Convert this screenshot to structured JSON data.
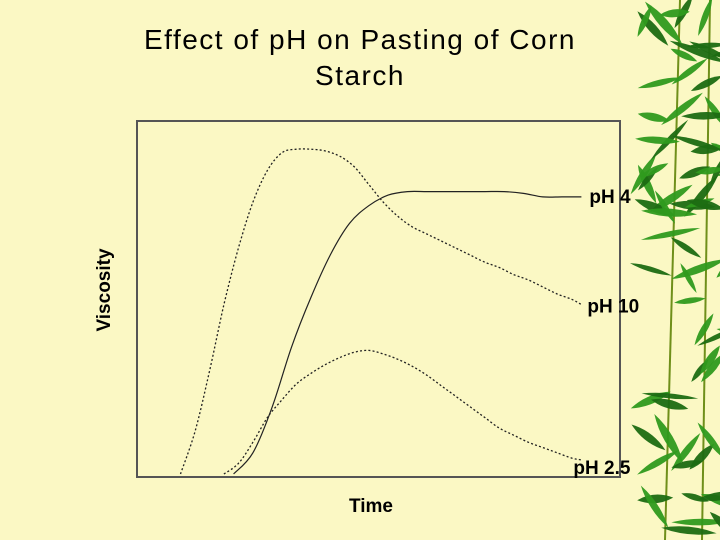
{
  "slide": {
    "title_line1": "Effect of pH on Pasting of Corn",
    "title_line2": "Starch"
  },
  "chart_data": {
    "type": "line",
    "title": "Effect of pH on Pasting of Corn Starch",
    "xlabel": "Time",
    "ylabel": "Viscosity",
    "xlim": [
      0,
      100
    ],
    "ylim": [
      0,
      100
    ],
    "grid": false,
    "legend": "inline-right",
    "series": [
      {
        "name": "pH 4",
        "style": "solid-dotted",
        "x": [
          20,
          24,
          28,
          32,
          36,
          40,
          44,
          48,
          52,
          56,
          60,
          64,
          68,
          72,
          76,
          80,
          84,
          88,
          92
        ],
        "y": [
          0,
          6,
          19,
          36,
          50,
          62,
          71,
          76,
          79,
          80,
          80,
          80,
          80,
          80,
          80,
          79.5,
          78.5,
          78.5,
          78.5
        ]
      },
      {
        "name": "pH 10",
        "style": "dotted",
        "x": [
          9,
          12,
          15,
          18,
          21,
          24,
          27,
          30,
          33,
          36,
          39,
          42,
          45,
          48,
          51,
          54,
          57,
          60,
          63,
          66,
          69,
          72,
          75,
          78,
          81,
          84,
          87,
          90,
          92
        ],
        "y": [
          0,
          12,
          29,
          48,
          64,
          77,
          86,
          91,
          92,
          92,
          91.5,
          90,
          87,
          82,
          77,
          73,
          70,
          68,
          66,
          64,
          62,
          60,
          58.5,
          56.5,
          55,
          53,
          51,
          49.5,
          48
        ]
      },
      {
        "name": "pH 2.5",
        "style": "dotted",
        "x": [
          18,
          21,
          24,
          27,
          30,
          33,
          36,
          39,
          42,
          45,
          48,
          51,
          54,
          57,
          60,
          63,
          66,
          69,
          72,
          75,
          78,
          81,
          84,
          87,
          90,
          92
        ],
        "y": [
          0,
          3,
          9,
          16,
          21,
          25.5,
          28.5,
          31,
          33,
          34.5,
          35,
          34,
          32.5,
          30.5,
          28,
          25,
          22,
          19,
          16,
          13,
          11,
          9,
          7.5,
          6,
          4.5,
          4
        ]
      }
    ]
  },
  "decor": {
    "leaf_color": "#2f9a1e",
    "leaf_dark": "#1c6b12",
    "stem_color": "#6f8f1a"
  }
}
